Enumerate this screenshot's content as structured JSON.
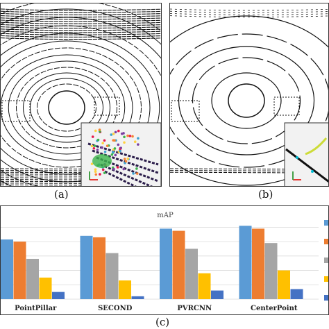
{
  "captions": {
    "a": "(a)",
    "b": "(b)",
    "c": "(c)"
  },
  "chart_data": {
    "type": "bar",
    "title": "mAP",
    "categories": [
      "PointPillar",
      "SECOND",
      "PVRCNN",
      "CenterPoint"
    ],
    "series": [
      {
        "color": "#5b9bd5",
        "values": [
          83,
          88,
          98,
          102
        ]
      },
      {
        "color": "#ed7d31",
        "values": [
          80,
          86,
          95,
          98
        ]
      },
      {
        "color": "#a5a5a5",
        "values": [
          56,
          64,
          70,
          78
        ]
      },
      {
        "color": "#ffc000",
        "values": [
          30,
          26,
          36,
          40
        ]
      },
      {
        "color": "#4472c4",
        "values": [
          10,
          4,
          12,
          14
        ]
      }
    ],
    "ylim": [
      0,
      110
    ],
    "grid": true,
    "legend": "right (cropped)"
  },
  "colors": {
    "scan": "#111111",
    "inset_bg": "#f2f2f2"
  }
}
